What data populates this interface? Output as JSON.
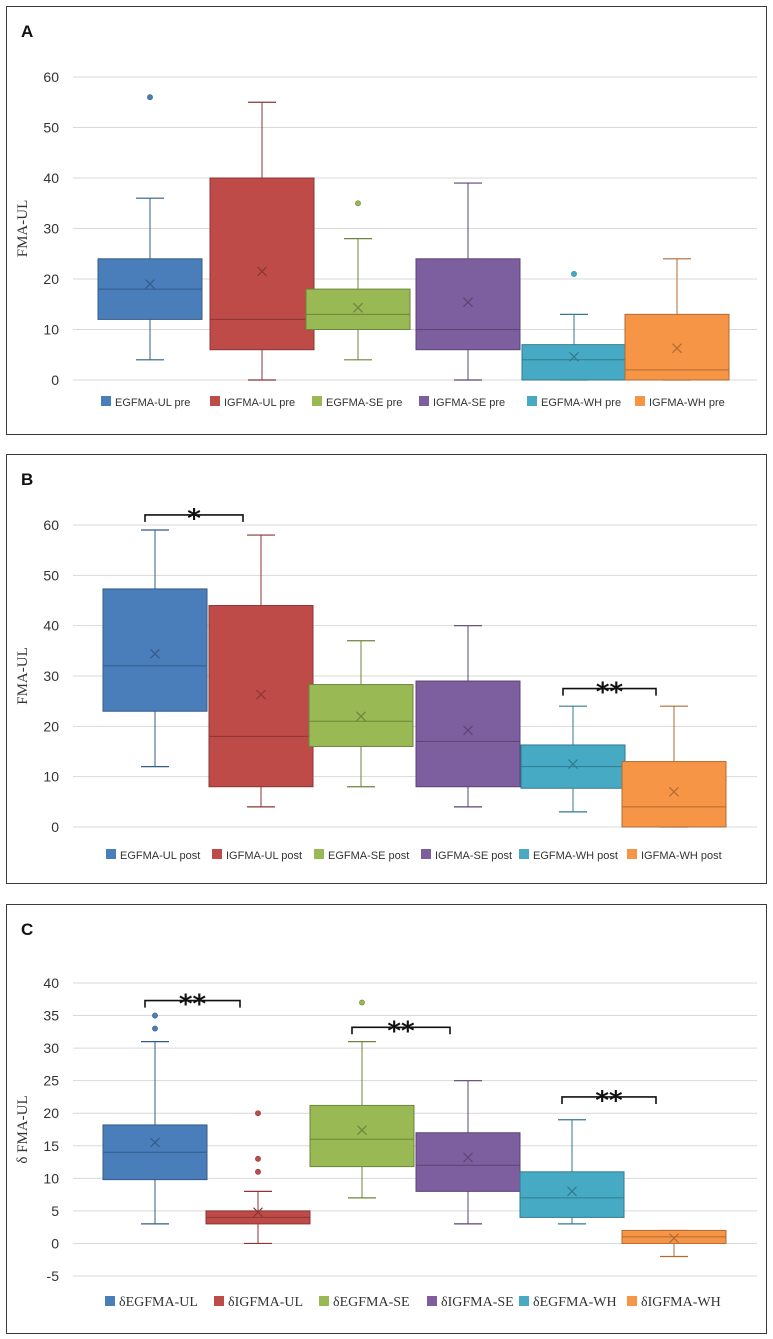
{
  "chart_data": [
    {
      "type": "boxplot",
      "panel_label": "A",
      "ylabel": "FMA-UL",
      "ylim": [
        0,
        60
      ],
      "yticks": [
        0,
        10,
        20,
        30,
        40,
        50,
        60
      ],
      "grid": true,
      "legend_position": "bottom",
      "series": [
        {
          "name": "EGFMA-UL pre",
          "color": "#4a7ebb",
          "min": 4,
          "q1": 12,
          "median": 18,
          "q3": 24,
          "max": 36,
          "mean": 19,
          "outliers": [
            56
          ]
        },
        {
          "name": "IGFMA-UL pre",
          "color": "#be4b48",
          "min": 0,
          "q1": 6,
          "median": 12,
          "q3": 40,
          "max": 55,
          "mean": 21.5,
          "outliers": []
        },
        {
          "name": "EGFMA-SE pre",
          "color": "#98b954",
          "min": 4,
          "q1": 10,
          "median": 13,
          "q3": 18,
          "max": 28,
          "mean": 14.3,
          "outliers": [
            35
          ]
        },
        {
          "name": "IGFMA-SE pre",
          "color": "#7d5fa0",
          "min": 0,
          "q1": 6,
          "median": 10,
          "q3": 24,
          "max": 39,
          "mean": 15.4,
          "outliers": []
        },
        {
          "name": "EGFMA-WH pre",
          "color": "#46aac5",
          "min": 0,
          "q1": 0,
          "median": 4,
          "q3": 7,
          "max": 13,
          "mean": 4.6,
          "outliers": [
            21
          ]
        },
        {
          "name": "IGFMA-WH pre",
          "color": "#f69546",
          "min": 0,
          "q1": 0,
          "median": 2,
          "q3": 13,
          "max": 24,
          "mean": 6.3,
          "outliers": []
        }
      ],
      "significance": []
    },
    {
      "type": "boxplot",
      "panel_label": "B",
      "ylabel": "FMA-UL",
      "ylim": [
        0,
        60
      ],
      "yticks": [
        0,
        10,
        20,
        30,
        40,
        50,
        60
      ],
      "grid": true,
      "legend_position": "bottom",
      "series": [
        {
          "name": "EGFMA-UL post",
          "color": "#4a7ebb",
          "min": 12,
          "q1": 23,
          "median": 32,
          "q3": 47.3,
          "max": 59,
          "mean": 34.4,
          "outliers": []
        },
        {
          "name": "IGFMA-UL post",
          "color": "#be4b48",
          "min": 4,
          "q1": 8,
          "median": 18,
          "q3": 44,
          "max": 58,
          "mean": 26.3,
          "outliers": []
        },
        {
          "name": "EGFMA-SE post",
          "color": "#98b954",
          "min": 8,
          "q1": 16,
          "median": 21,
          "q3": 28.3,
          "max": 37,
          "mean": 22,
          "outliers": []
        },
        {
          "name": "IGFMA-SE post",
          "color": "#7d5fa0",
          "min": 4,
          "q1": 8,
          "median": 17,
          "q3": 29,
          "max": 40,
          "mean": 19.2,
          "outliers": []
        },
        {
          "name": "EGFMA-WH post",
          "color": "#46aac5",
          "min": 3,
          "q1": 7.7,
          "median": 12,
          "q3": 16.3,
          "max": 24,
          "mean": 12.5,
          "outliers": []
        },
        {
          "name": "IGFMA-WH post",
          "color": "#f69546",
          "min": 0,
          "q1": 0,
          "median": 4,
          "q3": 13,
          "max": 24,
          "mean": 7,
          "outliers": []
        }
      ],
      "significance": [
        {
          "from": 0,
          "to": 1,
          "label": "*",
          "y": 62
        },
        {
          "from": 4,
          "to": 5,
          "label": "**",
          "y": 27.5
        }
      ]
    },
    {
      "type": "boxplot",
      "panel_label": "C",
      "ylabel": "δ FMA-UL",
      "ylim": [
        -5,
        40
      ],
      "yticks": [
        -5,
        0,
        5,
        10,
        15,
        20,
        25,
        30,
        35,
        40
      ],
      "grid": true,
      "legend_position": "bottom",
      "series": [
        {
          "name": "δEGFMA-UL",
          "color": "#4a7ebb",
          "min": 3,
          "q1": 9.8,
          "median": 14,
          "q3": 18.2,
          "max": 31,
          "mean": 15.5,
          "outliers": [
            33,
            35
          ]
        },
        {
          "name": "δIGFMA-UL",
          "color": "#be4b48",
          "min": 0,
          "q1": 3,
          "median": 4,
          "q3": 5,
          "max": 8,
          "mean": 4.8,
          "outliers": [
            11,
            13,
            20
          ]
        },
        {
          "name": "δEGFMA-SE",
          "color": "#98b954",
          "min": 7,
          "q1": 11.8,
          "median": 16,
          "q3": 21.2,
          "max": 31,
          "mean": 17.4,
          "outliers": [
            37
          ]
        },
        {
          "name": "δIGFMA-SE",
          "color": "#7d5fa0",
          "min": 3,
          "q1": 8,
          "median": 12,
          "q3": 17,
          "max": 25,
          "mean": 13.2,
          "outliers": []
        },
        {
          "name": "δEGFMA-WH",
          "color": "#46aac5",
          "min": 3,
          "q1": 4,
          "median": 7,
          "q3": 11,
          "max": 19,
          "mean": 8,
          "outliers": []
        },
        {
          "name": "δIGFMA-WH",
          "color": "#f69546",
          "min": -2,
          "q1": 0,
          "median": 1,
          "q3": 2,
          "max": 2,
          "mean": 0.8,
          "outliers": []
        }
      ],
      "significance": [
        {
          "from": 0,
          "to": 1,
          "label": "**",
          "y": 37.3
        },
        {
          "from": 2,
          "to": 3,
          "label": "**",
          "y": 33.2
        },
        {
          "from": 4,
          "to": 5,
          "label": "**",
          "y": 22.5
        }
      ]
    }
  ]
}
